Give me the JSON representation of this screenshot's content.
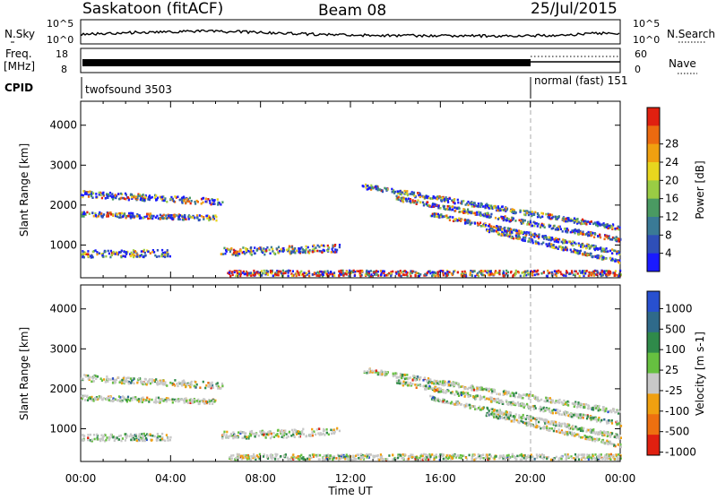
{
  "header": {
    "station": "Saskatoon (fitACF)",
    "beam": "Beam 08",
    "date": "25/Jul/2015"
  },
  "top_panels": {
    "noise": {
      "left_label": "N.Sky",
      "right_label": "N.Search",
      "left_ticks": [
        "10^5",
        "10^0"
      ],
      "right_ticks": [
        "10^5",
        "10^0"
      ]
    },
    "freq": {
      "left_label_line1": "Freq.",
      "left_label_line2": "[MHz]",
      "right_label": "Nave",
      "left_ticks": [
        "18",
        "8"
      ],
      "right_ticks": [
        "60",
        "0"
      ]
    },
    "cpid": {
      "label": "CPID",
      "mode1": "twofsound 3503",
      "mode2": "normal (fast) 151",
      "switch_time_h": 20
    }
  },
  "chart_data": [
    {
      "type": "heatmap",
      "name": "power",
      "ylabel": "Slant Range [km]",
      "xlabel": "Time UT",
      "x_ticks": [
        "00:00",
        "04:00",
        "08:00",
        "12:00",
        "16:00",
        "20:00",
        "00:00"
      ],
      "x_range_h": [
        0,
        24
      ],
      "y_ticks": [
        "1000",
        "2000",
        "3000",
        "4000"
      ],
      "ylim_km": [
        180,
        4600
      ],
      "colorbar": {
        "label": "Power [dB]",
        "ticks": [
          "4",
          "8",
          "12",
          "16",
          "20",
          "24",
          "28"
        ],
        "colors": [
          "#1a1aff",
          "#2f4fb8",
          "#3a7a96",
          "#4a9a62",
          "#9acc44",
          "#e8d61e",
          "#f0a010",
          "#ec6a10",
          "#e02010"
        ]
      },
      "scatter_bands": [
        {
          "t": [
            0.0,
            6.3
          ],
          "r0": 2300,
          "r1": 2100,
          "w": 160
        },
        {
          "t": [
            0.0,
            6.0
          ],
          "r0": 1800,
          "r1": 1700,
          "w": 130
        },
        {
          "t": [
            0.0,
            4.0
          ],
          "r0": 800,
          "r1": 820,
          "w": 180
        },
        {
          "t": [
            6.2,
            11.5
          ],
          "r0": 850,
          "r1": 950,
          "w": 200
        },
        {
          "t": [
            6.5,
            24.0
          ],
          "r0": 320,
          "r1": 320,
          "w": 140
        },
        {
          "t": [
            12.5,
            24.0
          ],
          "r0": 2500,
          "r1": 1450,
          "w": 120
        },
        {
          "t": [
            14.0,
            24.0
          ],
          "r0": 2200,
          "r1": 1150,
          "w": 110
        },
        {
          "t": [
            15.5,
            24.0
          ],
          "r0": 1800,
          "r1": 820,
          "w": 100
        },
        {
          "t": [
            18.0,
            24.0
          ],
          "r0": 1400,
          "r1": 600,
          "w": 90
        }
      ]
    },
    {
      "type": "heatmap",
      "name": "velocity",
      "ylabel": "Slant Range [km]",
      "xlabel": "Time UT",
      "x_ticks": [
        "00:00",
        "04:00",
        "08:00",
        "12:00",
        "16:00",
        "20:00",
        "00:00"
      ],
      "x_range_h": [
        0,
        24
      ],
      "y_ticks": [
        "1000",
        "2000",
        "3000",
        "4000"
      ],
      "ylim_km": [
        180,
        4600
      ],
      "colorbar": {
        "label": "Velocity [m s-1]",
        "ticks": [
          "1000",
          "500",
          "100",
          "25",
          "-25",
          "-100",
          "-500",
          "-1000"
        ],
        "colors": [
          "#2850d0",
          "#2f6a8a",
          "#2f8a4a",
          "#66c040",
          "#c8c8c8",
          "#f0a010",
          "#ee7010",
          "#e02010"
        ]
      },
      "scatter_bands": [
        {
          "t": [
            0.0,
            6.3
          ],
          "r0": 2300,
          "r1": 2100,
          "w": 160
        },
        {
          "t": [
            0.0,
            6.0
          ],
          "r0": 1800,
          "r1": 1700,
          "w": 130
        },
        {
          "t": [
            0.0,
            4.0
          ],
          "r0": 800,
          "r1": 820,
          "w": 180
        },
        {
          "t": [
            6.2,
            11.5
          ],
          "r0": 850,
          "r1": 950,
          "w": 200
        },
        {
          "t": [
            6.5,
            24.0
          ],
          "r0": 320,
          "r1": 320,
          "w": 140
        },
        {
          "t": [
            12.5,
            24.0
          ],
          "r0": 2500,
          "r1": 1450,
          "w": 120
        },
        {
          "t": [
            14.0,
            24.0
          ],
          "r0": 2200,
          "r1": 1150,
          "w": 110
        },
        {
          "t": [
            15.5,
            24.0
          ],
          "r0": 1800,
          "r1": 820,
          "w": 100
        },
        {
          "t": [
            18.0,
            24.0
          ],
          "r0": 1400,
          "r1": 600,
          "w": 90
        }
      ]
    }
  ]
}
